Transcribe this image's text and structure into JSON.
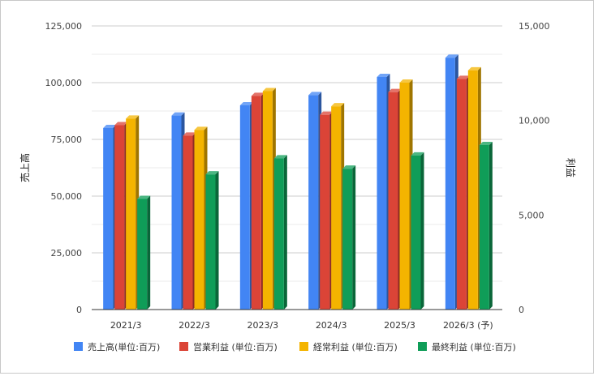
{
  "chart_data": {
    "type": "bar",
    "style": "3d",
    "categories": [
      "2021/3",
      "2022/3",
      "2023/3",
      "2024/3",
      "2025/3",
      "2026/3 (予)"
    ],
    "y_left": {
      "label": "売上高",
      "range": [
        0,
        125000
      ],
      "ticks": [
        "0",
        "25,000",
        "50,000",
        "75,000",
        "100,000",
        "125,000"
      ]
    },
    "y_right": {
      "label": "利益",
      "range": [
        0,
        15000
      ],
      "ticks": [
        "0",
        "5,000",
        "10,000",
        "15,000"
      ]
    },
    "grid": true,
    "legend_position": "bottom",
    "series": [
      {
        "name": "売上高(単位:百万)",
        "axis": "left",
        "color": "#4285f4",
        "values": [
          80000,
          85500,
          90000,
          94500,
          102500,
          111000
        ]
      },
      {
        "name": "営業利益 (単位:百万)",
        "axis": "right",
        "color": "#db4437",
        "values": [
          9750,
          9200,
          11300,
          10300,
          11500,
          12200
        ]
      },
      {
        "name": "経常利益 (単位:百万)",
        "axis": "right",
        "color": "#f4b400",
        "values": [
          10100,
          9500,
          11550,
          10750,
          12000,
          12650
        ]
      },
      {
        "name": "最終利益 (単位:百万)",
        "axis": "right",
        "color": "#0f9d58",
        "values": [
          5850,
          7150,
          8000,
          7450,
          8150,
          8700
        ]
      }
    ]
  }
}
